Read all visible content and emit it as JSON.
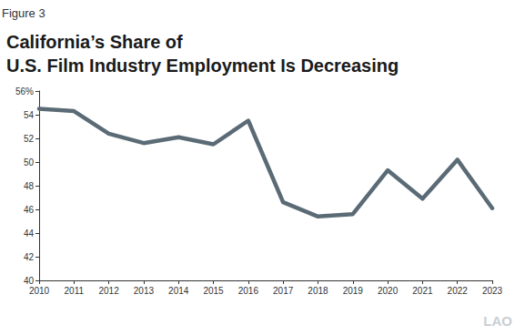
{
  "chart_data": {
    "type": "line",
    "title": "California’s Share of\nU.S. Film Industry Employment Is Decreasing",
    "annotations": [
      "Figure 3",
      "LAO"
    ],
    "categories": [
      "2010",
      "2011",
      "2012",
      "2013",
      "2014",
      "2015",
      "2016",
      "2017",
      "2018",
      "2019",
      "2020",
      "2021",
      "2022",
      "2023"
    ],
    "values": [
      54.5,
      54.3,
      52.4,
      51.6,
      52.1,
      51.5,
      53.5,
      46.6,
      45.4,
      45.6,
      49.3,
      46.9,
      50.2,
      46.1
    ],
    "color": "#5b6b76",
    "ylim": [
      40,
      56
    ],
    "yticks": [
      40,
      42,
      44,
      46,
      48,
      50,
      52,
      54,
      {
        "value": 56,
        "label": "56%"
      }
    ],
    "grid": false
  }
}
